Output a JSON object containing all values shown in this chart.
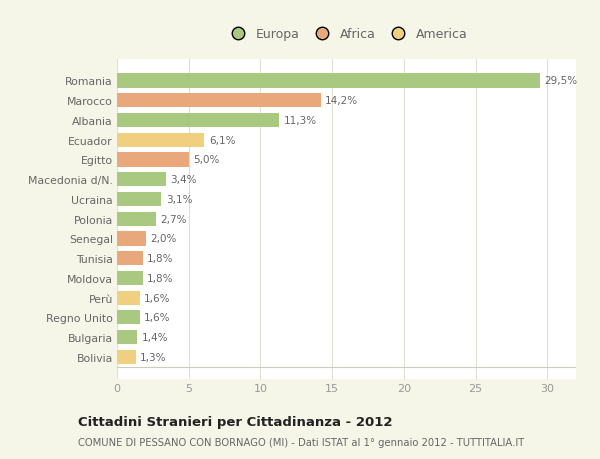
{
  "countries": [
    "Romania",
    "Marocco",
    "Albania",
    "Ecuador",
    "Egitto",
    "Macedonia d/N.",
    "Ucraina",
    "Polonia",
    "Senegal",
    "Tunisia",
    "Moldova",
    "Perù",
    "Regno Unito",
    "Bulgaria",
    "Bolivia"
  ],
  "values": [
    29.5,
    14.2,
    11.3,
    6.1,
    5.0,
    3.4,
    3.1,
    2.7,
    2.0,
    1.8,
    1.8,
    1.6,
    1.6,
    1.4,
    1.3
  ],
  "labels": [
    "29,5%",
    "14,2%",
    "11,3%",
    "6,1%",
    "5,0%",
    "3,4%",
    "3,1%",
    "2,7%",
    "2,0%",
    "1,8%",
    "1,8%",
    "1,6%",
    "1,6%",
    "1,4%",
    "1,3%"
  ],
  "categories": [
    "Europa",
    "Africa",
    "America"
  ],
  "bar_colors": [
    "#a8c97f",
    "#e8a87c",
    "#a8c97f",
    "#f0d080",
    "#e8a87c",
    "#a8c97f",
    "#a8c97f",
    "#a8c97f",
    "#e8a87c",
    "#e8a87c",
    "#a8c97f",
    "#f0d080",
    "#a8c97f",
    "#a8c97f",
    "#f0d080"
  ],
  "legend_colors": [
    "#a8c97f",
    "#e8a87c",
    "#f0d080"
  ],
  "title": "Cittadini Stranieri per Cittadinanza - 2012",
  "subtitle": "COMUNE DI PESSANO CON BORNAGO (MI) - Dati ISTAT al 1° gennaio 2012 - TUTTITALIA.IT",
  "xlim": [
    0,
    32
  ],
  "xticks": [
    0,
    5,
    10,
    15,
    20,
    25,
    30
  ],
  "background_color": "#f5f5e8",
  "plot_bg_color": "#ffffff",
  "grid_color": "#e0e0d0"
}
